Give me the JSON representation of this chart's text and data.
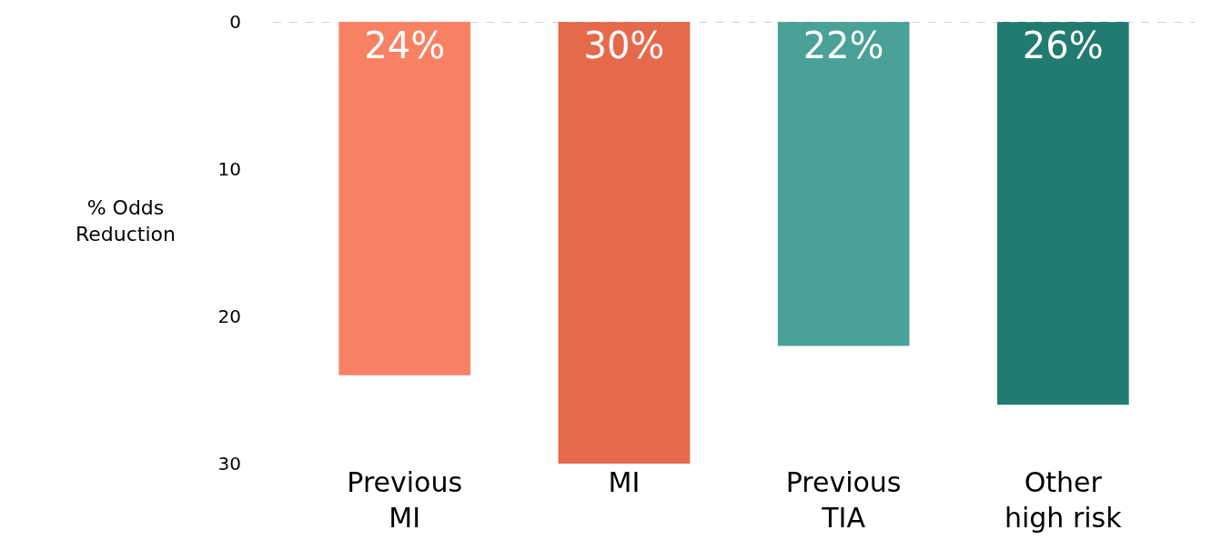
{
  "chart_data": {
    "type": "bar",
    "ylabel": "% Odds Reduction",
    "categories": [
      "Previous MI",
      "MI",
      "Previous TIA",
      "Other high risk"
    ],
    "values": [
      24,
      30,
      22,
      26
    ],
    "colors": [
      "#f98163",
      "#e56a4c",
      "#4aa197",
      "#227b70"
    ],
    "value_labels": [
      "24%",
      "30%",
      "22%",
      "26%"
    ],
    "ylim": [
      30,
      0
    ],
    "yticks": [
      0,
      10,
      20,
      30
    ],
    "ref_lines": [
      {
        "axis": "y",
        "value": 0,
        "color": "#aaaaaa",
        "line_style": "dashed"
      }
    ]
  }
}
